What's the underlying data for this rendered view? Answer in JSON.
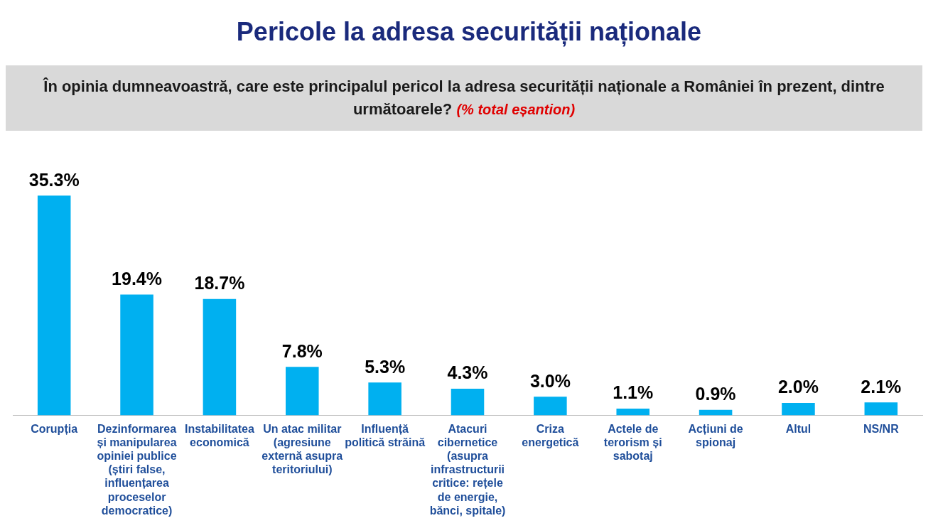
{
  "chart_data": {
    "type": "bar",
    "title": "Pericole la adresa securității naționale",
    "subtitle": "În opinia dumneavoastră, care este principalul pericol la adresa securității naționale a României în prezent, dintre următoarele?",
    "annotations": [
      "(% total eșantion)"
    ],
    "categories": [
      "Corupția",
      "Dezinformarea și manipularea opiniei publice (știri false, influențarea proceselor democratice)",
      "Instabilitatea economică",
      "Un atac militar (agresiune externă asupra teritoriului)",
      "Influență politică străină",
      "Atacuri cibernetice (asupra infrastructurii critice: rețele de energie, bănci, spitale)",
      "Criza energetică",
      "Actele de terorism și sabotaj",
      "Acțiuni de spionaj",
      "Altul",
      "NS/NR"
    ],
    "values": [
      35.3,
      19.4,
      18.7,
      7.8,
      5.3,
      4.3,
      3.0,
      1.1,
      0.9,
      2.0,
      2.1
    ],
    "value_labels": [
      "35.3%",
      "19.4%",
      "18.7%",
      "7.8%",
      "5.3%",
      "4.3%",
      "3.0%",
      "1.1%",
      "0.9%",
      "2.0%",
      "2.1%"
    ],
    "color": "#00b0f0",
    "grid": false,
    "legend": false,
    "tick_labels": "x"
  }
}
